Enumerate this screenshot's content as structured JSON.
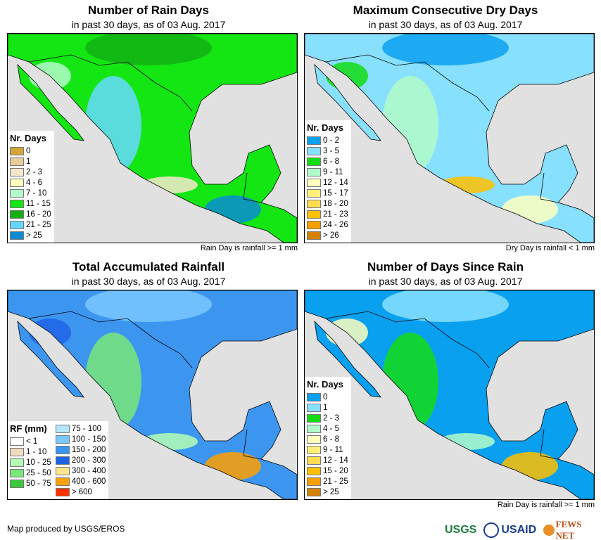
{
  "panels": [
    {
      "title": "Number of Rain Days",
      "subtitle": "in past 30 days, as of 03 Aug. 2017",
      "note": "Rain Day is rainfall >= 1 mm",
      "legend": {
        "title": "Nr. Days",
        "items": [
          {
            "label": "0",
            "color": "#d4a637"
          },
          {
            "label": "1",
            "color": "#e8cc9a"
          },
          {
            "label": "2 - 3",
            "color": "#f6e7cc"
          },
          {
            "label": "4 - 6",
            "color": "#ffffbe"
          },
          {
            "label": "7 - 10",
            "color": "#b1fcc8"
          },
          {
            "label": "11 - 15",
            "color": "#14e614"
          },
          {
            "label": "16 - 20",
            "color": "#12b012"
          },
          {
            "label": "21 - 25",
            "color": "#66d8ff"
          },
          {
            "label": "> 25",
            "color": "#0a8bd2"
          }
        ]
      },
      "base": "#14e614",
      "blobs": [
        "#12b012",
        "#66d8ff",
        "#b1fcc8",
        "#0a8bd2",
        "#f6e7cc"
      ]
    },
    {
      "title": "Maximum Consecutive Dry Days",
      "subtitle": "in past 30 days, as of 03 Aug. 2017",
      "note": "Dry Day is rainfall < 1 mm",
      "legend": {
        "title": "Nr. Days",
        "items": [
          {
            "label": "0 - 2",
            "color": "#0aa0f0"
          },
          {
            "label": "3 - 5",
            "color": "#88e0ff"
          },
          {
            "label": "6 - 8",
            "color": "#14dc14"
          },
          {
            "label": "9 - 11",
            "color": "#b1fcc8"
          },
          {
            "label": "12 - 14",
            "color": "#ffffbe"
          },
          {
            "label": "15 - 17",
            "color": "#fff07a"
          },
          {
            "label": "18 - 20",
            "color": "#ffdc50"
          },
          {
            "label": "21 - 23",
            "color": "#ffc000"
          },
          {
            "label": "24 - 26",
            "color": "#f5a000"
          },
          {
            "label": "> 26",
            "color": "#d28200"
          }
        ]
      },
      "base": "#88e0ff",
      "blobs": [
        "#0aa0f0",
        "#b1fcc8",
        "#14dc14",
        "#ffffbe",
        "#ffc000"
      ]
    },
    {
      "title": "Total Accumulated Rainfall",
      "subtitle": "in past 30 days, as of 03 Aug. 2017",
      "note": "",
      "legend": {
        "title": "RF (mm)",
        "items": [
          {
            "label": "< 1",
            "color": "#ffffff"
          },
          {
            "label": "1 - 10",
            "color": "#f0dcbe"
          },
          {
            "label": "10 - 25",
            "color": "#b4ffb4"
          },
          {
            "label": "25 - 50",
            "color": "#78e678"
          },
          {
            "label": "50 - 75",
            "color": "#3cc83c"
          },
          {
            "label": "75 - 100",
            "color": "#b4e6ff"
          },
          {
            "label": "100 - 150",
            "color": "#78c8ff"
          },
          {
            "label": "150 - 200",
            "color": "#3c96f0"
          },
          {
            "label": "200 - 300",
            "color": "#1e64e6"
          },
          {
            "label": "300 - 400",
            "color": "#ffe68c"
          },
          {
            "label": "400 - 600",
            "color": "#ffa000"
          },
          {
            "label": "> 600",
            "color": "#ff3200"
          }
        ]
      },
      "base": "#3c96f0",
      "blobs": [
        "#78c8ff",
        "#78e678",
        "#1e64e6",
        "#ffa000",
        "#b4ffb4"
      ]
    },
    {
      "title": "Number of Days Since Rain",
      "subtitle": "in past 30 days, as of 03 Aug. 2017",
      "note": "Rain Day is rainfall >= 1 mm",
      "legend": {
        "title": "Nr. Days",
        "items": [
          {
            "label": "0",
            "color": "#0aa0f0"
          },
          {
            "label": "1",
            "color": "#88e0ff"
          },
          {
            "label": "2 - 3",
            "color": "#14dc14"
          },
          {
            "label": "4 - 5",
            "color": "#b1fcc8"
          },
          {
            "label": "6 - 8",
            "color": "#ffffbe"
          },
          {
            "label": "9 - 11",
            "color": "#fff07a"
          },
          {
            "label": "12 - 14",
            "color": "#ffdc50"
          },
          {
            "label": "15 - 20",
            "color": "#ffc000"
          },
          {
            "label": "21 - 25",
            "color": "#f5a000"
          },
          {
            "label": "> 25",
            "color": "#d28200"
          }
        ]
      },
      "base": "#0aa0f0",
      "blobs": [
        "#88e0ff",
        "#14dc14",
        "#ffffbe",
        "#ffc000",
        "#b1fcc8"
      ]
    }
  ],
  "credit": "Map produced by USGS/EROS",
  "logos": [
    "USGS",
    "USAID",
    "FEWS NET"
  ]
}
